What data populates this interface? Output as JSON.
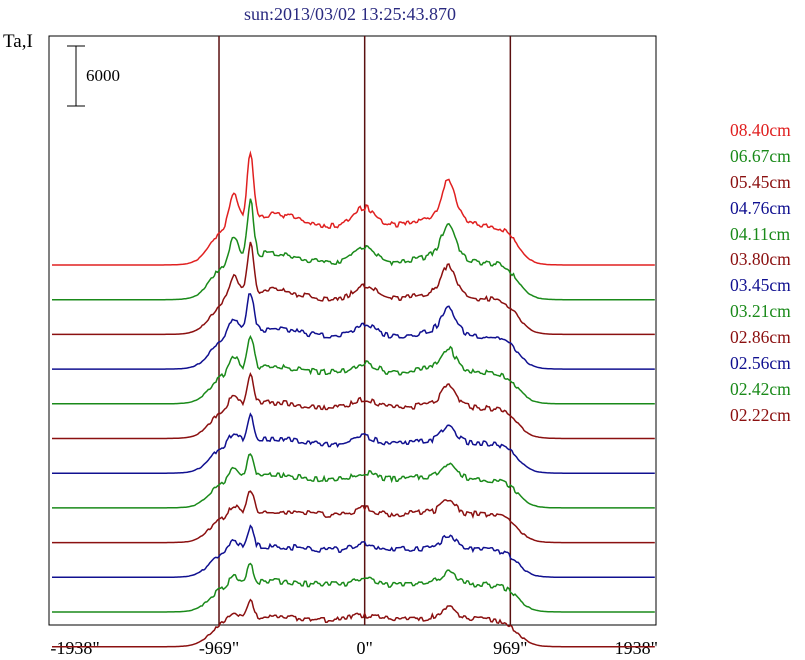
{
  "chart_data": {
    "type": "line",
    "title": "sun:2013/03/02 13:25:43.870",
    "ylabel": "Ta,I",
    "scale_bar_label": "6000",
    "xlim": [
      -2100,
      1938
    ],
    "x_ticks": [
      {
        "value": -1938,
        "label": "-1938\""
      },
      {
        "value": -969,
        "label": "-969\""
      },
      {
        "value": 0,
        "label": "0\""
      },
      {
        "value": 969,
        "label": "969\""
      },
      {
        "value": 1938,
        "label": "1938\""
      }
    ],
    "vertical_lines": [
      -969,
      0,
      969
    ],
    "series": [
      {
        "name": "08.40cm",
        "color": "#e02020",
        "baseline": 0,
        "amp": 10.5
      },
      {
        "name": "06.67cm",
        "color": "#1a8a1a",
        "baseline": 1,
        "amp": 9.0
      },
      {
        "name": "05.45cm",
        "color": "#8b1010",
        "baseline": 2,
        "amp": 8.0
      },
      {
        "name": "04.76cm",
        "color": "#101090",
        "baseline": 3,
        "amp": 6.5
      },
      {
        "name": "04.11cm",
        "color": "#1a8a1a",
        "baseline": 4,
        "amp": 5.5
      },
      {
        "name": "03.80cm",
        "color": "#8b1010",
        "baseline": 5,
        "amp": 5.0
      },
      {
        "name": "03.45cm",
        "color": "#101090",
        "baseline": 6,
        "amp": 4.2
      },
      {
        "name": "03.21cm",
        "color": "#1a8a1a",
        "baseline": 7,
        "amp": 3.8
      },
      {
        "name": "02.86cm",
        "color": "#8b1010",
        "baseline": 8,
        "amp": 3.4
      },
      {
        "name": "02.56cm",
        "color": "#101090",
        "baseline": 9,
        "amp": 3.1
      },
      {
        "name": "02.42cm",
        "color": "#1a8a1a",
        "baseline": 10,
        "amp": 2.9
      },
      {
        "name": "02.22cm",
        "color": "#8b1010",
        "baseline": 11,
        "amp": 2.7
      }
    ],
    "line_colors": {
      "vertical": "#5a1010",
      "frame": "#000000",
      "title": "#2a2a80"
    },
    "grid": false,
    "legend_placement": "right"
  }
}
